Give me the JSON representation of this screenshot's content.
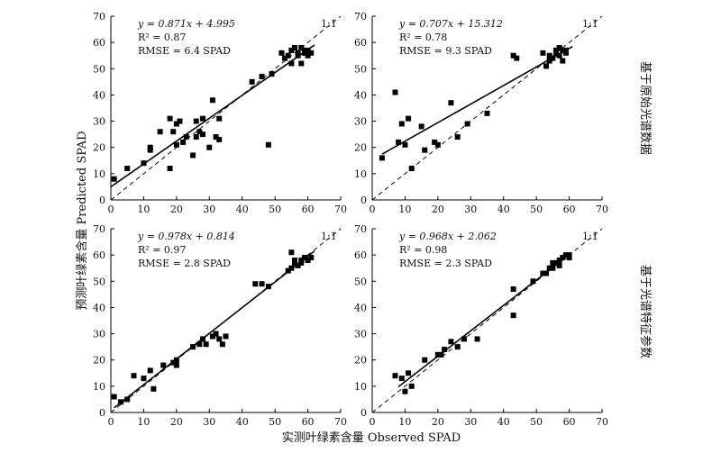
{
  "figure": {
    "y_label": "预测叶绿素含量 Predicted SPAD",
    "x_label": "实测叶绿素含量 Observed SPAD",
    "row_labels": [
      "基于原始光谱数据",
      "基于光谱特征参数"
    ],
    "one_to_one_label": "1:1"
  },
  "chart_data": [
    {
      "type": "scatter",
      "equation": "y = 0.871x + 4.995",
      "r2_label": "R² = 0.87",
      "rmse_label": "RMSE = 6.4 SPAD",
      "fit": {
        "slope": 0.871,
        "intercept": 4.995,
        "x_range": [
          0,
          62
        ]
      },
      "xlim": [
        0,
        70
      ],
      "ylim": [
        0,
        70
      ],
      "xticks": [
        0,
        10,
        20,
        30,
        40,
        50,
        60,
        70
      ],
      "yticks": [
        0,
        10,
        20,
        30,
        40,
        50,
        60,
        70
      ],
      "points": [
        [
          1,
          8
        ],
        [
          5,
          12
        ],
        [
          10,
          14
        ],
        [
          12,
          19
        ],
        [
          12,
          20
        ],
        [
          15,
          26
        ],
        [
          18,
          31
        ],
        [
          18,
          12
        ],
        [
          19,
          26
        ],
        [
          20,
          29
        ],
        [
          20,
          21
        ],
        [
          21,
          30
        ],
        [
          22,
          22
        ],
        [
          23,
          24
        ],
        [
          25,
          17
        ],
        [
          26,
          24
        ],
        [
          26,
          30
        ],
        [
          27,
          26
        ],
        [
          28,
          31
        ],
        [
          28,
          25
        ],
        [
          30,
          20
        ],
        [
          31,
          38
        ],
        [
          32,
          24
        ],
        [
          33,
          31
        ],
        [
          33,
          23
        ],
        [
          43,
          45
        ],
        [
          46,
          47
        ],
        [
          48,
          21
        ],
        [
          49,
          48
        ],
        [
          52,
          56
        ],
        [
          53,
          54
        ],
        [
          54,
          55
        ],
        [
          55,
          52
        ],
        [
          55,
          57
        ],
        [
          56,
          58
        ],
        [
          57,
          56
        ],
        [
          57,
          55
        ],
        [
          58,
          58
        ],
        [
          58,
          52
        ],
        [
          59,
          57
        ],
        [
          59,
          56
        ],
        [
          60,
          55
        ],
        [
          60,
          57
        ],
        [
          61,
          56
        ]
      ]
    },
    {
      "type": "scatter",
      "equation": "y = 0.707x + 15.312",
      "r2_label": "R² = 0.78",
      "rmse_label": "RMSE = 9.3 SPAD",
      "fit": {
        "slope": 0.707,
        "intercept": 15.312,
        "x_range": [
          3,
          61
        ]
      },
      "xlim": [
        0,
        70
      ],
      "ylim": [
        0,
        70
      ],
      "xticks": [
        0,
        10,
        20,
        30,
        40,
        50,
        60,
        70
      ],
      "yticks": [
        0,
        10,
        20,
        30,
        40,
        50,
        60,
        70
      ],
      "points": [
        [
          3,
          16
        ],
        [
          7,
          41
        ],
        [
          8,
          22
        ],
        [
          9,
          29
        ],
        [
          10,
          21
        ],
        [
          11,
          31
        ],
        [
          12,
          12
        ],
        [
          15,
          28
        ],
        [
          16,
          19
        ],
        [
          19,
          22
        ],
        [
          20,
          21
        ],
        [
          24,
          37
        ],
        [
          26,
          24
        ],
        [
          29,
          29
        ],
        [
          35,
          33
        ],
        [
          43,
          55
        ],
        [
          44,
          54
        ],
        [
          52,
          56
        ],
        [
          53,
          51
        ],
        [
          54,
          53
        ],
        [
          54,
          55
        ],
        [
          55,
          54
        ],
        [
          56,
          56
        ],
        [
          56,
          57
        ],
        [
          57,
          58
        ],
        [
          57,
          55
        ],
        [
          58,
          57
        ],
        [
          58,
          53
        ],
        [
          59,
          57
        ],
        [
          59,
          56
        ]
      ]
    },
    {
      "type": "scatter",
      "equation": "y = 0.978x + 0.814",
      "r2_label": "R² = 0.97",
      "rmse_label": "RMSE = 2.8 SPAD",
      "fit": {
        "slope": 0.978,
        "intercept": 0.814,
        "x_range": [
          1,
          62
        ]
      },
      "xlim": [
        0,
        70
      ],
      "ylim": [
        0,
        70
      ],
      "xticks": [
        0,
        10,
        20,
        30,
        40,
        50,
        60,
        70
      ],
      "yticks": [
        0,
        10,
        20,
        30,
        40,
        50,
        60,
        70
      ],
      "points": [
        [
          1,
          6
        ],
        [
          3,
          4
        ],
        [
          5,
          5
        ],
        [
          7,
          14
        ],
        [
          10,
          13
        ],
        [
          12,
          16
        ],
        [
          13,
          9
        ],
        [
          16,
          18
        ],
        [
          19,
          19
        ],
        [
          20,
          20
        ],
        [
          20,
          18
        ],
        [
          25,
          25
        ],
        [
          27,
          26
        ],
        [
          28,
          28
        ],
        [
          29,
          26
        ],
        [
          31,
          29
        ],
        [
          32,
          30
        ],
        [
          33,
          28
        ],
        [
          34,
          26
        ],
        [
          35,
          29
        ],
        [
          44,
          49
        ],
        [
          46,
          49
        ],
        [
          48,
          48
        ],
        [
          54,
          54
        ],
        [
          55,
          55
        ],
        [
          55,
          61
        ],
        [
          56,
          58
        ],
        [
          56,
          57
        ],
        [
          57,
          56
        ],
        [
          58,
          58
        ],
        [
          58,
          57
        ],
        [
          59,
          59
        ],
        [
          60,
          58
        ],
        [
          61,
          59
        ]
      ]
    },
    {
      "type": "scatter",
      "equation": "y = 0.968x + 2.062",
      "r2_label": "R² = 0.98",
      "rmse_label": "RMSE = 2.3 SPAD",
      "fit": {
        "slope": 0.968,
        "intercept": 2.062,
        "x_range": [
          8,
          60
        ]
      },
      "xlim": [
        0,
        70
      ],
      "ylim": [
        0,
        70
      ],
      "xticks": [
        0,
        10,
        20,
        30,
        40,
        50,
        60,
        70
      ],
      "yticks": [
        0,
        10,
        20,
        30,
        40,
        50,
        60,
        70
      ],
      "points": [
        [
          7,
          14
        ],
        [
          9,
          13
        ],
        [
          10,
          8
        ],
        [
          11,
          15
        ],
        [
          12,
          10
        ],
        [
          16,
          20
        ],
        [
          20,
          22
        ],
        [
          21,
          22
        ],
        [
          22,
          24
        ],
        [
          24,
          27
        ],
        [
          26,
          25
        ],
        [
          28,
          28
        ],
        [
          32,
          28
        ],
        [
          43,
          47
        ],
        [
          43,
          37
        ],
        [
          49,
          50
        ],
        [
          52,
          53
        ],
        [
          53,
          53
        ],
        [
          54,
          55
        ],
        [
          55,
          57
        ],
        [
          55,
          55
        ],
        [
          56,
          57
        ],
        [
          57,
          56
        ],
        [
          57,
          58
        ],
        [
          58,
          59
        ],
        [
          59,
          60
        ],
        [
          60,
          59
        ],
        [
          60,
          60
        ]
      ]
    }
  ]
}
